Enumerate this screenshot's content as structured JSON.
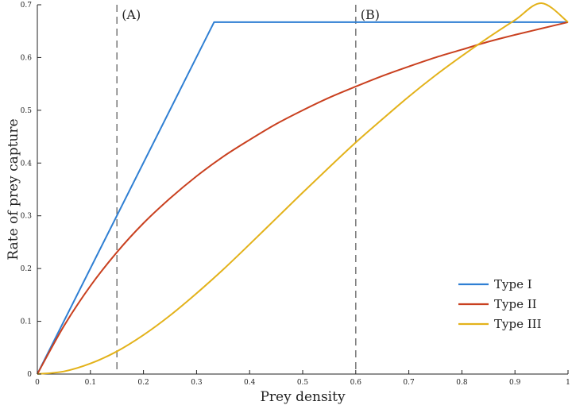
{
  "chart_data": {
    "type": "line",
    "title": "",
    "xlabel": "Prey density",
    "ylabel": "Rate of prey capture",
    "xlim": [
      0,
      1
    ],
    "ylim": [
      0,
      0.7
    ],
    "xticks": [
      0,
      0.1,
      0.2,
      0.3,
      0.4,
      0.5,
      0.6,
      0.7,
      0.8,
      0.9,
      1
    ],
    "xtick_labels": [
      "0",
      "0.1",
      "0.2",
      "0.3",
      "0.4",
      "0.5",
      "0.6",
      "0.7",
      "0.8",
      "0.9",
      "1"
    ],
    "yticks": [
      0,
      0.1,
      0.2,
      0.3,
      0.4,
      0.5,
      0.6,
      0.7
    ],
    "ytick_labels": [
      "0",
      "0.1",
      "0.2",
      "0.3",
      "0.4",
      "0.5",
      "0.6",
      "0.7"
    ],
    "grid": false,
    "legend_position": "bottom-right",
    "vlines": [
      {
        "x": 0.15,
        "label": "(A)",
        "color": "#7f7f7f",
        "style": "dashed"
      },
      {
        "x": 0.6,
        "label": "(B)",
        "color": "#7f7f7f",
        "style": "dashed"
      }
    ],
    "series": [
      {
        "name": "Type I",
        "color": "#2f7fd3",
        "x": [
          0,
          0.333,
          1
        ],
        "y": [
          0,
          0.667,
          0.667
        ]
      },
      {
        "name": "Type II",
        "color": "#c9401f",
        "x": [
          0,
          0.05,
          0.1,
          0.15,
          0.2,
          0.25,
          0.3,
          0.35,
          0.4,
          0.45,
          0.5,
          0.55,
          0.6,
          0.65,
          0.7,
          0.75,
          0.8,
          0.85,
          0.9,
          0.95,
          1
        ],
        "y": [
          0,
          0.091,
          0.167,
          0.231,
          0.286,
          0.333,
          0.375,
          0.412,
          0.444,
          0.474,
          0.5,
          0.524,
          0.545,
          0.565,
          0.583,
          0.6,
          0.615,
          0.63,
          0.643,
          0.655,
          0.667
        ]
      },
      {
        "name": "Type III",
        "color": "#e3b21a",
        "x": [
          0,
          0.05,
          0.1,
          0.15,
          0.2,
          0.25,
          0.3,
          0.35,
          0.4,
          0.45,
          0.5,
          0.55,
          0.6,
          0.65,
          0.7,
          0.75,
          0.8,
          0.85,
          0.9,
          0.95,
          1
        ],
        "y": [
          0,
          0.005,
          0.02,
          0.043,
          0.074,
          0.111,
          0.153,
          0.198,
          0.246,
          0.295,
          0.344,
          0.392,
          0.439,
          0.483,
          0.526,
          0.566,
          0.603,
          0.638,
          0.671,
          0.703,
          0.667
        ]
      }
    ]
  }
}
